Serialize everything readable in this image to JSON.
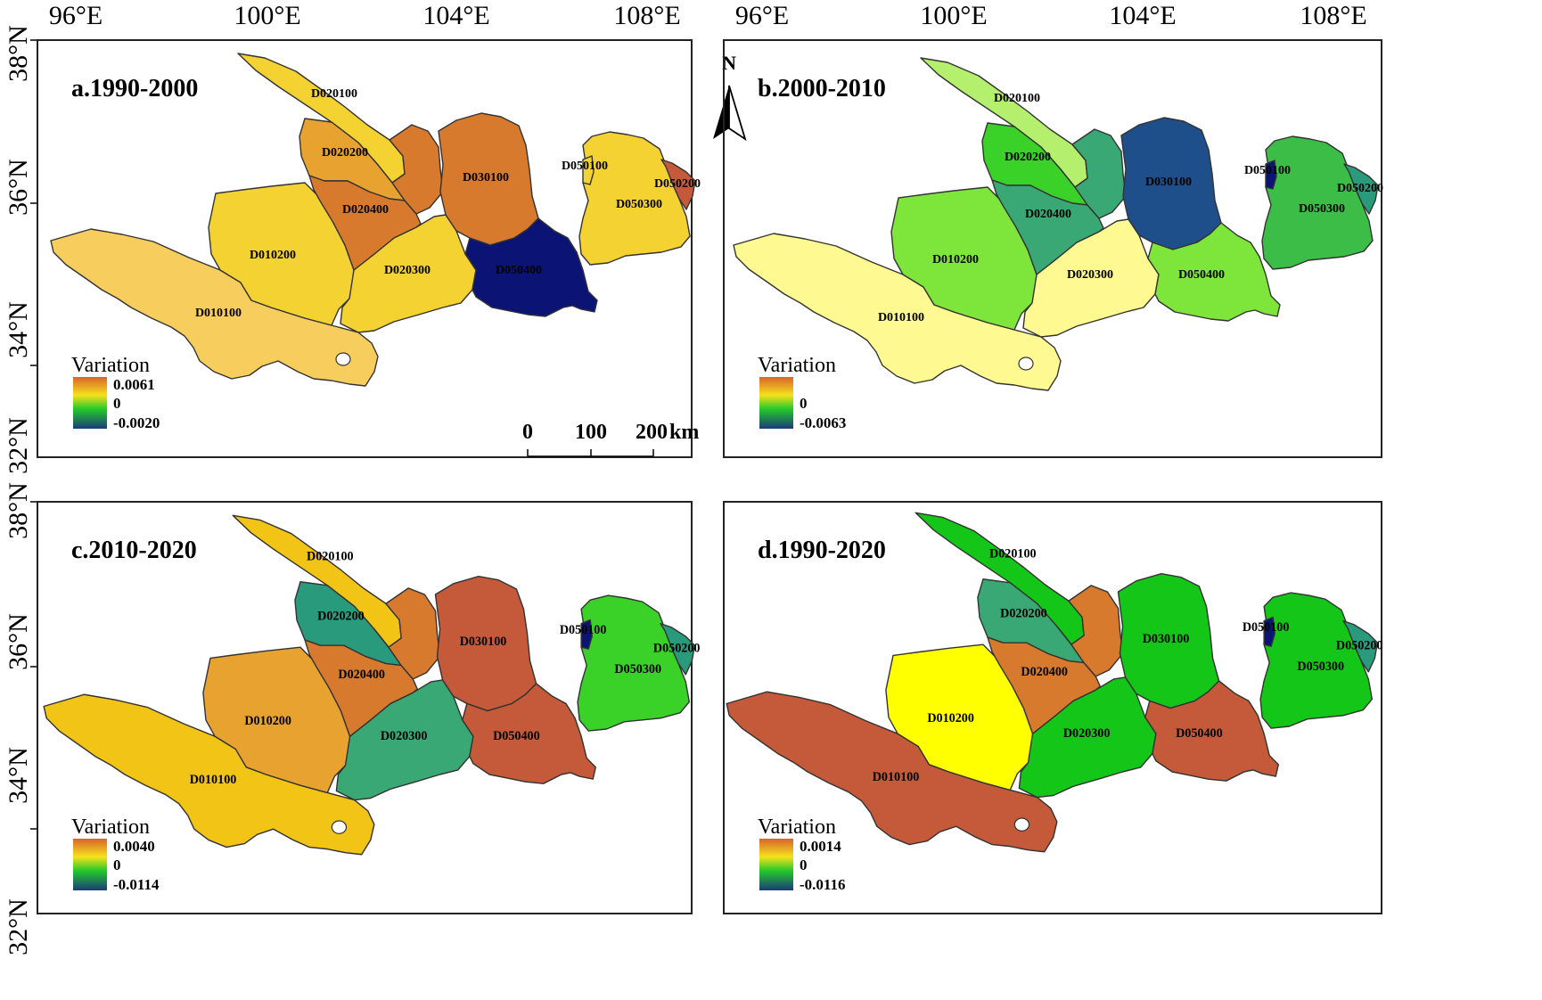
{
  "figure": {
    "lon_ticks": [
      "96°E",
      "100°E",
      "104°E",
      "108°E"
    ],
    "lat_ticks": [
      "38°N",
      "36°N",
      "34°N",
      "32°N"
    ]
  },
  "colors": {
    "lightyellow": "#fefa91",
    "pale": "#f7cd5e",
    "yellow_orange": "#f4d232",
    "gold": "#f1c415",
    "amber": "#e8a230",
    "orange": "#d87a2e",
    "brick": "#c55a3a",
    "navy": "#0b1474",
    "navyblue": "#1f4f8a",
    "teal": "#2a9a7c",
    "tealgreen": "#3aa874",
    "green": "#13c617",
    "brightgreen": "#3ad128",
    "lightgreen": "#7ee63a",
    "palegreen": "#b4f06e",
    "medgreen": "#3bbd47",
    "yellow": "#ffff00",
    "ramp_top": "#d8642b",
    "ramp_mid_hi": "#f6e21c",
    "ramp_mid": "#24c92a",
    "ramp_low": "#1b3a7a"
  },
  "panels": [
    {
      "title": "a.1990-2000",
      "legend": {
        "title": "Variation",
        "max": "0.0061",
        "zero": "0",
        "min": "-0.0020"
      },
      "fills": {
        "D010100": "pale",
        "D010200": "yellow_orange",
        "D020100": "yellow_orange",
        "D020200": "amber",
        "D020300": "yellow_orange",
        "D020400": "orange",
        "D020500": "orange",
        "D030100": "orange",
        "D050400": "navy",
        "D050300": "yellow_orange",
        "D050100": "yellow_orange",
        "D050200": "brick"
      },
      "scale_bar": {
        "labels": [
          "0",
          "100",
          "200"
        ],
        "unit": "km"
      },
      "north_label": "N"
    },
    {
      "title": "b.2000-2010",
      "legend": {
        "title": "Variation",
        "max": "",
        "zero": "0",
        "min": "-0.0063"
      },
      "fills": {
        "D010100": "lightyellow",
        "D010200": "lightgreen",
        "D020100": "palegreen",
        "D020200": "brightgreen",
        "D020300": "lightyellow",
        "D020400": "tealgreen",
        "D020500": "tealgreen",
        "D030100": "navyblue",
        "D050400": "lightgreen",
        "D050300": "medgreen",
        "D050100": "navy",
        "D050200": "teal"
      }
    },
    {
      "title": "c.2010-2020",
      "legend": {
        "title": "Variation",
        "max": "0.0040",
        "zero": "0",
        "min": "-0.0114"
      },
      "fills": {
        "D010100": "gold",
        "D010200": "amber",
        "D020100": "gold",
        "D020200": "teal",
        "D020300": "tealgreen",
        "D020400": "orange",
        "D020500": "orange",
        "D030100": "brick",
        "D050400": "brick",
        "D050300": "brightgreen",
        "D050100": "navy",
        "D050200": "teal"
      }
    },
    {
      "title": "d.1990-2020",
      "legend": {
        "title": "Variation",
        "max": "0.0014",
        "zero": "0",
        "min": "-0.0116"
      },
      "fills": {
        "D010100": "brick",
        "D010200": "yellow",
        "D020100": "green",
        "D020200": "tealgreen",
        "D020300": "green",
        "D020400": "orange",
        "D020500": "orange",
        "D030100": "green",
        "D050400": "brick",
        "D050300": "green",
        "D050100": "navy",
        "D050200": "teal"
      }
    }
  ],
  "region_labels": {
    "D010100": "D010100",
    "D010200": "D010200",
    "D020100": "D020100",
    "D020200": "D020200",
    "D020300": "D020300",
    "D020400": "D020400",
    "D030100": "D030100",
    "D050400": "D050400",
    "D050300": "D050300",
    "D050100": "D050100",
    "D050200": "D050200"
  }
}
